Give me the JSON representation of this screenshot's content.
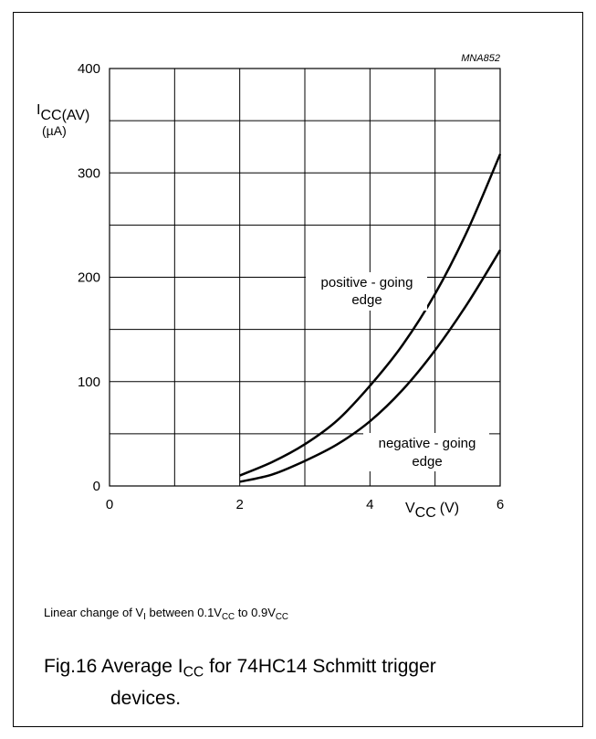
{
  "chart_data": {
    "type": "line",
    "code": "MNA852",
    "ylabel_main": "I",
    "ylabel_sub": "CC(AV)",
    "ylabel_unit": "(µA)",
    "xlabel_main": "V",
    "xlabel_sub": "CC",
    "xlabel_unit": "(V)",
    "xlim": [
      0,
      6
    ],
    "ylim": [
      0,
      400
    ],
    "x_ticks": [
      "0",
      "2",
      "4",
      "6"
    ],
    "x_tick_values": [
      0,
      2,
      4,
      6
    ],
    "y_ticks": [
      "0",
      "100",
      "200",
      "300",
      "400"
    ],
    "y_tick_values": [
      0,
      100,
      200,
      300,
      400
    ],
    "grid": true,
    "series": [
      {
        "name": "positive - going edge",
        "label_line1": "positive - going",
        "label_line2": "edge",
        "x": [
          2,
          2.5,
          3,
          3.5,
          4,
          4.5,
          5,
          5.5,
          6
        ],
        "y": [
          10,
          23,
          40,
          63,
          96,
          135,
          184,
          245,
          318
        ]
      },
      {
        "name": "negative - going edge",
        "label_line1": "negative - going",
        "label_line2": "edge",
        "x": [
          2,
          2.5,
          3,
          3.5,
          4,
          4.5,
          5,
          5.5,
          6
        ],
        "y": [
          4,
          11,
          24,
          40,
          62,
          92,
          130,
          175,
          226
        ]
      }
    ]
  },
  "note": {
    "prefix": "Linear change of V",
    "sub1": "I",
    "mid": " between 0.1V",
    "sub2": "CC",
    "mid2": " to 0.9V",
    "sub3": "CC"
  },
  "caption": {
    "fig": "Fig.16  Average I",
    "sub": "CC",
    "rest": " for 74HC14 Schmitt trigger",
    "line2": "devices."
  }
}
